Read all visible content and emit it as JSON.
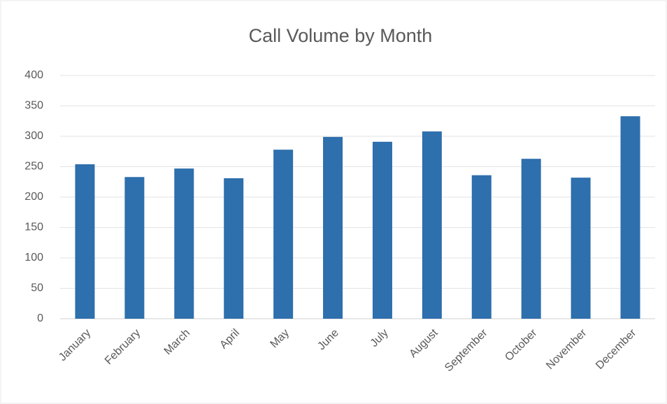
{
  "chart_data": {
    "type": "bar",
    "title": "Call Volume by Month",
    "categories": [
      "January",
      "February",
      "March",
      "April",
      "May",
      "June",
      "July",
      "August",
      "September",
      "October",
      "November",
      "December"
    ],
    "values": [
      254,
      233,
      247,
      231,
      278,
      299,
      291,
      308,
      236,
      263,
      232,
      333
    ],
    "color": "#2e6fad",
    "ylim": [
      0,
      400
    ],
    "yticks": [
      0,
      50,
      100,
      150,
      200,
      250,
      300,
      350,
      400
    ],
    "grid": true
  }
}
